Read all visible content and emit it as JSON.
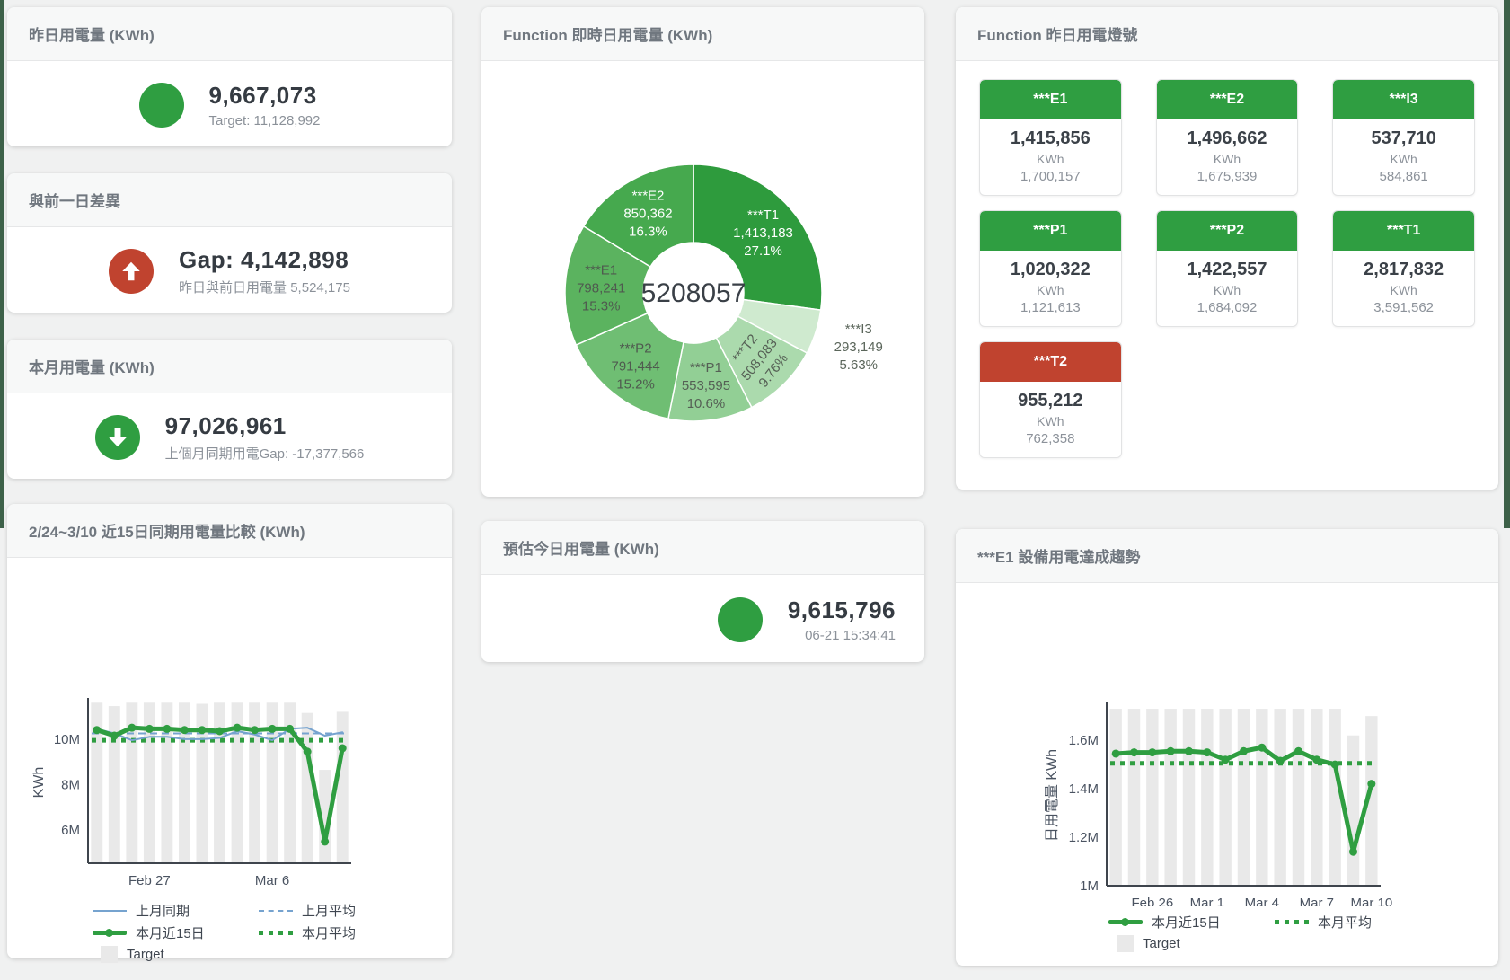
{
  "theme": {
    "green": "#2f9e41",
    "red": "#c0432f",
    "blue_line": "#76a3cf",
    "target_bar_gray": "#e9e9e9",
    "edge_strip_green": "#3d6149"
  },
  "kpi_cards": {
    "yesterday": {
      "title": "昨日用電量 (KWh)",
      "value": "9,667,073",
      "subtitle": "Target: 11,128,992",
      "status_color": "#2f9e41",
      "direction": "none"
    },
    "gap": {
      "title": "與前一日差異",
      "value": "Gap: 4,142,898",
      "subtitle": "昨日與前日用電量 5,524,175",
      "status_color": "#c0432f",
      "direction": "up"
    },
    "month": {
      "title": "本月用電量 (KWh)",
      "value": "97,026,961",
      "subtitle": "上個月同期用電Gap: -17,377,566",
      "status_color": "#2f9e41",
      "direction": "down"
    },
    "estimate": {
      "title": "預估今日用電量 (KWh)",
      "value": "9,615,796",
      "subtitle": "06-21 15:34:41",
      "status_color": "#2f9e41",
      "direction": "none"
    }
  },
  "donut_card": {
    "title": "Function 即時日用電量 (KWh)"
  },
  "compare_card": {
    "title": "2/24~3/10 近15日同期用電量比較 (KWh)"
  },
  "trend_card": {
    "title": "***E1 設備用電達成趨勢"
  },
  "lights": {
    "title": "Function 昨日用電燈號",
    "unit": "KWh",
    "items": [
      {
        "label": "***E1",
        "value": "1,415,856",
        "unit": "KWh",
        "secondary": "1,700,157",
        "color": "#2f9e41"
      },
      {
        "label": "***E2",
        "value": "1,496,662",
        "unit": "KWh",
        "secondary": "1,675,939",
        "color": "#2f9e41"
      },
      {
        "label": "***I3",
        "value": "537,710",
        "unit": "KWh",
        "secondary": "584,861",
        "color": "#2f9e41"
      },
      {
        "label": "***P1",
        "value": "1,020,322",
        "unit": "KWh",
        "secondary": "1,121,613",
        "color": "#2f9e41"
      },
      {
        "label": "***P2",
        "value": "1,422,557",
        "unit": "KWh",
        "secondary": "1,684,092",
        "color": "#2f9e41"
      },
      {
        "label": "***T1",
        "value": "2,817,832",
        "unit": "KWh",
        "secondary": "3,591,562",
        "color": "#2f9e41"
      },
      {
        "label": "***T2",
        "value": "955,212",
        "unit": "KWh",
        "secondary": "762,358",
        "color": "#c0432f"
      }
    ]
  },
  "chart_data": [
    {
      "type": "pie",
      "title": "Function 即時日用電量 (KWh)",
      "center_total": "5208057",
      "legend_position": "none",
      "slices": [
        {
          "name": "***T1",
          "value": 1413183,
          "pct": "27.1%",
          "color": "#2e9b3d",
          "label_color": "#ffffff",
          "label_pos": "inside"
        },
        {
          "name": "***I3",
          "value": 293149,
          "pct": "5.63%",
          "color": "#cfeacf",
          "label_color": "#5b665b",
          "label_pos": "outside"
        },
        {
          "name": "***T2",
          "value": 508083,
          "pct": "9.76%",
          "color": "#abdaad",
          "label_color": "#556055",
          "label_pos": "inside",
          "rotate": -52
        },
        {
          "name": "***P1",
          "value": 553595,
          "pct": "10.6%",
          "color": "#92cf95",
          "label_color": "#556055",
          "label_pos": "inside"
        },
        {
          "name": "***P2",
          "value": 791444,
          "pct": "15.2%",
          "color": "#6fbe73",
          "label_color": "#4f5a4f",
          "label_pos": "inside"
        },
        {
          "name": "***E1",
          "value": 798241,
          "pct": "15.3%",
          "color": "#5bb35f",
          "label_color": "#4f5a4f",
          "label_pos": "inside"
        },
        {
          "name": "***E2",
          "value": 850362,
          "pct": "16.3%",
          "color": "#46a94e",
          "label_color": "#ffffff",
          "label_pos": "inside"
        }
      ]
    },
    {
      "type": "line+bar",
      "title": "2/24~3/10 近15日同期用電量比較 (KWh)",
      "xlabel": "",
      "ylabel": "KWh",
      "ylim": [
        4550000,
        11650000
      ],
      "grid": false,
      "legend_position": "bottom",
      "x_count": 15,
      "yticks": [
        {
          "v": 6000000,
          "label": "6M"
        },
        {
          "v": 8000000,
          "label": "8M"
        },
        {
          "v": 10000000,
          "label": "10M"
        }
      ],
      "xticks": [
        {
          "i": 3,
          "label": "Feb 27"
        },
        {
          "i": 10,
          "label": "Mar 6"
        }
      ],
      "series": [
        {
          "name": "上月同期",
          "type": "line",
          "color": "#76a3cf",
          "width": 2,
          "values": [
            10450000,
            10250000,
            9950000,
            10100000,
            10100000,
            10000000,
            10000000,
            10050000,
            10350000,
            10200000,
            9950000,
            10450000,
            10500000,
            10150000,
            10300000
          ]
        },
        {
          "name": "上月平均",
          "type": "hline",
          "style": "dashed",
          "color": "#76a3cf",
          "value": 10250000
        },
        {
          "name": "本月近15日",
          "type": "line",
          "color": "#2f9e41",
          "width": 5,
          "markers": true,
          "values": [
            10400000,
            10150000,
            10500000,
            10450000,
            10450000,
            10400000,
            10400000,
            10350000,
            10500000,
            10400000,
            10450000,
            10450000,
            9450000,
            5500000,
            9600000
          ]
        },
        {
          "name": "本月平均",
          "type": "hline",
          "style": "dotted",
          "color": "#2f9e41",
          "value": 9950000
        },
        {
          "name": "Target",
          "type": "bar",
          "color": "#e9e9e9",
          "values": [
            11600000,
            11450000,
            11600000,
            11600000,
            11600000,
            11600000,
            11550000,
            11600000,
            11600000,
            11600000,
            11600000,
            11600000,
            11150000,
            8650000,
            11200000
          ]
        }
      ]
    },
    {
      "type": "line+bar",
      "title": "***E1 設備用電達成趨勢",
      "xlabel": "",
      "ylabel": "日用電量 KWh",
      "ylim": [
        1000000,
        1745000
      ],
      "grid": false,
      "legend_position": "bottom",
      "x_count": 15,
      "yticks": [
        {
          "v": 1000000,
          "label": "1M"
        },
        {
          "v": 1200000,
          "label": "1.2M"
        },
        {
          "v": 1400000,
          "label": "1.4M"
        },
        {
          "v": 1600000,
          "label": "1.6M"
        }
      ],
      "xticks": [
        {
          "i": 2,
          "label": "Feb 26"
        },
        {
          "i": 5,
          "label": "Mar 1"
        },
        {
          "i": 8,
          "label": "Mar 4"
        },
        {
          "i": 11,
          "label": "Mar 7"
        },
        {
          "i": 14,
          "label": "Mar 10"
        }
      ],
      "series": [
        {
          "name": "本月近15日",
          "type": "line",
          "color": "#2f9e41",
          "width": 5,
          "markers": true,
          "values": [
            1545000,
            1550000,
            1550000,
            1555000,
            1555000,
            1550000,
            1520000,
            1555000,
            1570000,
            1515000,
            1555000,
            1520000,
            1500000,
            1140000,
            1420000
          ]
        },
        {
          "name": "本月平均",
          "type": "hline",
          "style": "dotted",
          "color": "#2f9e41",
          "value": 1505000
        },
        {
          "name": "Target",
          "type": "bar",
          "color": "#e9e9e9",
          "values": [
            1730000,
            1730000,
            1730000,
            1730000,
            1730000,
            1730000,
            1730000,
            1730000,
            1730000,
            1730000,
            1730000,
            1730000,
            1730000,
            1620000,
            1700000
          ]
        }
      ]
    }
  ]
}
